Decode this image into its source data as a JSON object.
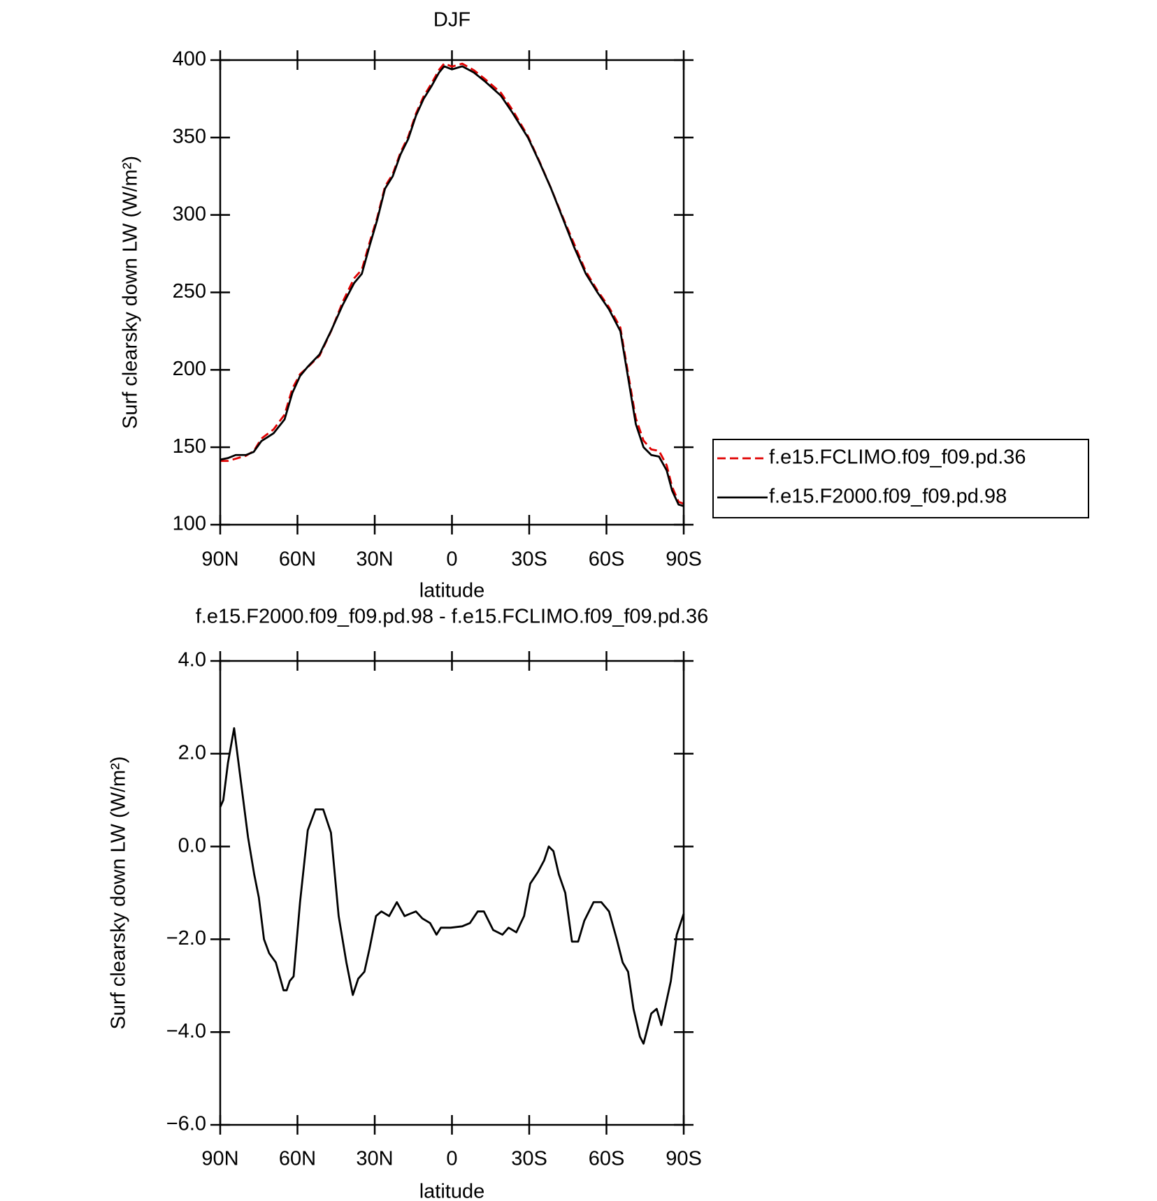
{
  "chart_data": [
    {
      "type": "line",
      "title": "DJF",
      "xlabel": "latitude",
      "ylabel": "Surf clearsky down LW (W/m²)",
      "x": [
        90,
        87,
        84,
        80,
        77,
        74,
        69.3,
        65,
        62,
        59,
        56,
        51.4,
        47,
        42.4,
        38,
        35,
        32,
        29,
        26,
        23,
        20,
        17,
        14,
        11,
        8,
        5,
        3,
        0,
        -4,
        -8.5,
        -13,
        -19,
        -23.5,
        -29.5,
        -34,
        -38.5,
        -43,
        -47.5,
        -52,
        -56.5,
        -61,
        -65.4,
        -68.4,
        -71.4,
        -74.4,
        -77.4,
        -80.4,
        -83.4,
        -85.5,
        -88,
        -90
      ],
      "series": [
        {
          "name": "f.e15.FCLIMO.f09_f09.pd.36",
          "color": "#e00000",
          "line_style": "dashed",
          "values": [
            141.2,
            141.2,
            142.6,
            144.5,
            147.5,
            155.6,
            161.5,
            171.1,
            187.8,
            197.2,
            201.7,
            209.2,
            224.7,
            244,
            259.1,
            264.7,
            282.2,
            298.5,
            318.4,
            326.4,
            340.3,
            350.5,
            365.4,
            376.6,
            384.7,
            393.8,
            397.8,
            395.8,
            397.7,
            393.5,
            387.5,
            378.9,
            367.8,
            350.9,
            334.5,
            317.1,
            298.8,
            281.1,
            263.5,
            251.2,
            240.4,
            227.3,
            197.7,
            168.7,
            154.3,
            148.6,
            147.7,
            138.3,
            124.5,
            114.8,
            113.5
          ]
        },
        {
          "name": "f.e15.F2000.f09_f09.pd.98",
          "color": "#000000",
          "line_style": "solid",
          "values": [
            142,
            143,
            145,
            145,
            147,
            154,
            159,
            168,
            185,
            196,
            202,
            210,
            225,
            242,
            256,
            262,
            280,
            297,
            317,
            325,
            339,
            349,
            364,
            375,
            383,
            392,
            396,
            394,
            396,
            392,
            386,
            377,
            366,
            350,
            334,
            317,
            298,
            279,
            262,
            250,
            239,
            225,
            195,
            165,
            150,
            145,
            144,
            135,
            122,
            113,
            112
          ]
        }
      ],
      "xlim": [
        90,
        -90
      ],
      "xticks": [
        {
          "value": 90,
          "label": "90N"
        },
        {
          "value": 60,
          "label": "60N"
        },
        {
          "value": 30,
          "label": "30N"
        },
        0,
        {
          "value": -30,
          "label": "30S"
        },
        {
          "value": -60,
          "label": "60S"
        },
        {
          "value": -90,
          "label": "90S"
        }
      ],
      "ylim": [
        100,
        400
      ],
      "yticks": [
        100,
        150,
        200,
        250,
        300,
        350,
        400
      ],
      "legend": "right"
    },
    {
      "type": "line",
      "title": "f.e15.F2000.f09_f09.pd.98 - f.e15.FCLIMO.f09_f09.pd.36",
      "xlabel": "latitude",
      "ylabel": "Surf clearsky down LW (W/m²)",
      "x": [
        90,
        88.8,
        87,
        84.6,
        82.2,
        79.2,
        76.8,
        75,
        73,
        71,
        68.4,
        65.4,
        64.2,
        63,
        61.5,
        59,
        56,
        53,
        50,
        47,
        44,
        41,
        38.5,
        36.4,
        34,
        32,
        29.5,
        27.4,
        24.4,
        21.4,
        18.4,
        16.3,
        14,
        11.5,
        8.5,
        6,
        4.3,
        0.5,
        -4,
        -7,
        -10,
        -12.4,
        -16,
        -19.6,
        -22,
        -25,
        -28,
        -30.4,
        -33.4,
        -35.8,
        -37.6,
        -39.4,
        -41.5,
        -44,
        -46.6,
        -49,
        -51.4,
        -55,
        -58,
        -61,
        -64,
        -66.3,
        -68.4,
        -70.5,
        -73,
        -74.4,
        -77.4,
        -79.5,
        -81.3,
        -85,
        -87.3,
        -90
      ],
      "color": "#000000",
      "values": [
        0.85,
        1.0,
        1.8,
        2.55,
        1.5,
        0.2,
        -0.6,
        -1.1,
        -2.0,
        -2.3,
        -2.5,
        -3.1,
        -3.1,
        -2.9,
        -2.8,
        -1.2,
        0.35,
        0.8,
        0.8,
        0.3,
        -1.5,
        -2.5,
        -3.2,
        -2.85,
        -2.7,
        -2.2,
        -1.5,
        -1.4,
        -1.5,
        -1.2,
        -1.5,
        -1.45,
        -1.4,
        -1.55,
        -1.65,
        -1.9,
        -1.75,
        -1.75,
        -1.72,
        -1.65,
        -1.4,
        -1.4,
        -1.8,
        -1.9,
        -1.75,
        -1.85,
        -1.5,
        -0.8,
        -0.55,
        -0.3,
        0.0,
        -0.1,
        -0.6,
        -1.0,
        -2.05,
        -2.05,
        -1.6,
        -1.2,
        -1.2,
        -1.4,
        -2.0,
        -2.5,
        -2.7,
        -3.5,
        -4.1,
        -4.25,
        -3.6,
        -3.5,
        -3.85,
        -2.9,
        -1.9,
        -1.45
      ],
      "xlim": [
        90,
        -90
      ],
      "xticks": [
        {
          "value": 90,
          "label": "90N"
        },
        {
          "value": 60,
          "label": "60N"
        },
        {
          "value": 30,
          "label": "30N"
        },
        0,
        {
          "value": -30,
          "label": "30S"
        },
        {
          "value": -60,
          "label": "60S"
        },
        {
          "value": -90,
          "label": "90S"
        }
      ],
      "ylim": [
        -6,
        4
      ],
      "yticks": [
        {
          "value": -6,
          "label": "−6.0"
        },
        {
          "value": -4,
          "label": "−4.0"
        },
        {
          "value": -2,
          "label": "−2.0"
        },
        {
          "value": 0,
          "label": "0.0"
        },
        {
          "value": 2,
          "label": "2.0"
        },
        {
          "value": 4,
          "label": "4.0"
        }
      ]
    }
  ]
}
